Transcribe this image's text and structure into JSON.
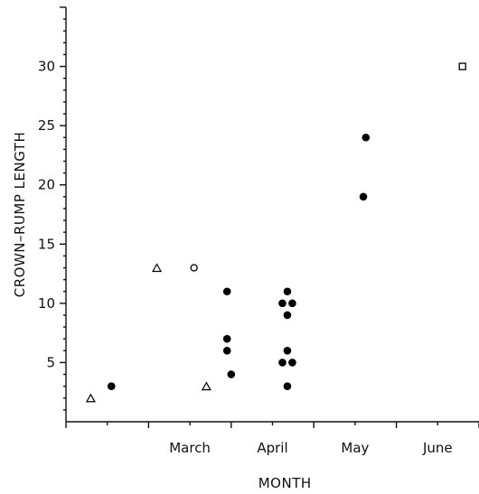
{
  "chart_data": {
    "type": "scatter",
    "title": "",
    "xlabel": "MONTH",
    "ylabel": "CROWN–RUMP LENGTH",
    "x_categories": [
      "March",
      "April",
      "May",
      "June"
    ],
    "y_ticks": [
      5,
      10,
      15,
      20,
      25,
      30
    ],
    "xlim": [
      0,
      5
    ],
    "ylim": [
      0,
      35
    ],
    "grid": false,
    "series": [
      {
        "marker": "filled-circle",
        "points": [
          {
            "x": 0.55,
            "y": 3
          },
          {
            "x": 1.95,
            "y": 11
          },
          {
            "x": 1.95,
            "y": 7
          },
          {
            "x": 1.95,
            "y": 6
          },
          {
            "x": 2.0,
            "y": 4
          },
          {
            "x": 2.68,
            "y": 11
          },
          {
            "x": 2.62,
            "y": 10
          },
          {
            "x": 2.74,
            "y": 10
          },
          {
            "x": 2.68,
            "y": 9
          },
          {
            "x": 2.68,
            "y": 6
          },
          {
            "x": 2.62,
            "y": 5
          },
          {
            "x": 2.74,
            "y": 5
          },
          {
            "x": 2.68,
            "y": 3
          },
          {
            "x": 3.63,
            "y": 24
          },
          {
            "x": 3.6,
            "y": 19
          }
        ]
      },
      {
        "marker": "open-triangle",
        "points": [
          {
            "x": 0.3,
            "y": 2
          },
          {
            "x": 1.1,
            "y": 13
          },
          {
            "x": 1.7,
            "y": 3
          }
        ]
      },
      {
        "marker": "open-circle",
        "points": [
          {
            "x": 1.55,
            "y": 13
          }
        ]
      },
      {
        "marker": "open-square",
        "points": [
          {
            "x": 4.8,
            "y": 30
          }
        ]
      }
    ]
  }
}
